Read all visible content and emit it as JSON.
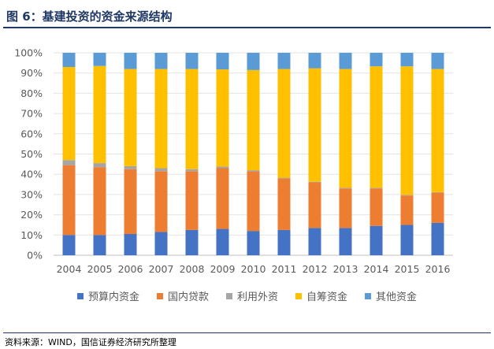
{
  "title": "图 6：基建投资的资金来源结构",
  "source": "资料来源：WIND，国信证券经济研究所整理",
  "chart_data": {
    "type": "bar",
    "stacked": true,
    "categories": [
      "2004",
      "2005",
      "2006",
      "2007",
      "2008",
      "2009",
      "2010",
      "2011",
      "2012",
      "2013",
      "2014",
      "2015",
      "2016"
    ],
    "ylim": [
      0,
      100
    ],
    "yticks": [
      "0%",
      "10%",
      "20%",
      "30%",
      "40%",
      "50%",
      "60%",
      "70%",
      "80%",
      "90%",
      "100%"
    ],
    "series": [
      {
        "name": "预算内资金",
        "color": "#4472c4",
        "values": [
          10,
          10,
          10.5,
          11.5,
          12.5,
          13,
          12,
          12.5,
          13.5,
          13.5,
          14.5,
          15,
          16
        ]
      },
      {
        "name": "国内贷款",
        "color": "#ed7d31",
        "values": [
          34.5,
          33.5,
          32,
          30,
          29,
          30,
          29.5,
          25.5,
          22.5,
          19.5,
          18.5,
          14.5,
          15
        ]
      },
      {
        "name": "利用外资",
        "color": "#a5a5a5",
        "values": [
          2.5,
          2,
          1.5,
          1.5,
          1,
          0.8,
          0.5,
          0.3,
          0.3,
          0.3,
          0.3,
          0.3,
          0.2
        ]
      },
      {
        "name": "自筹资金",
        "color": "#ffc000",
        "values": [
          46,
          48,
          48,
          49,
          49.5,
          48,
          49.5,
          53.7,
          56,
          58.7,
          60,
          63.5,
          60.8
        ]
      },
      {
        "name": "其他资金",
        "color": "#5b9bd5",
        "values": [
          7,
          6.5,
          8,
          8,
          8,
          8.2,
          8.5,
          8,
          7.7,
          8,
          6.7,
          6.7,
          8
        ]
      }
    ]
  }
}
